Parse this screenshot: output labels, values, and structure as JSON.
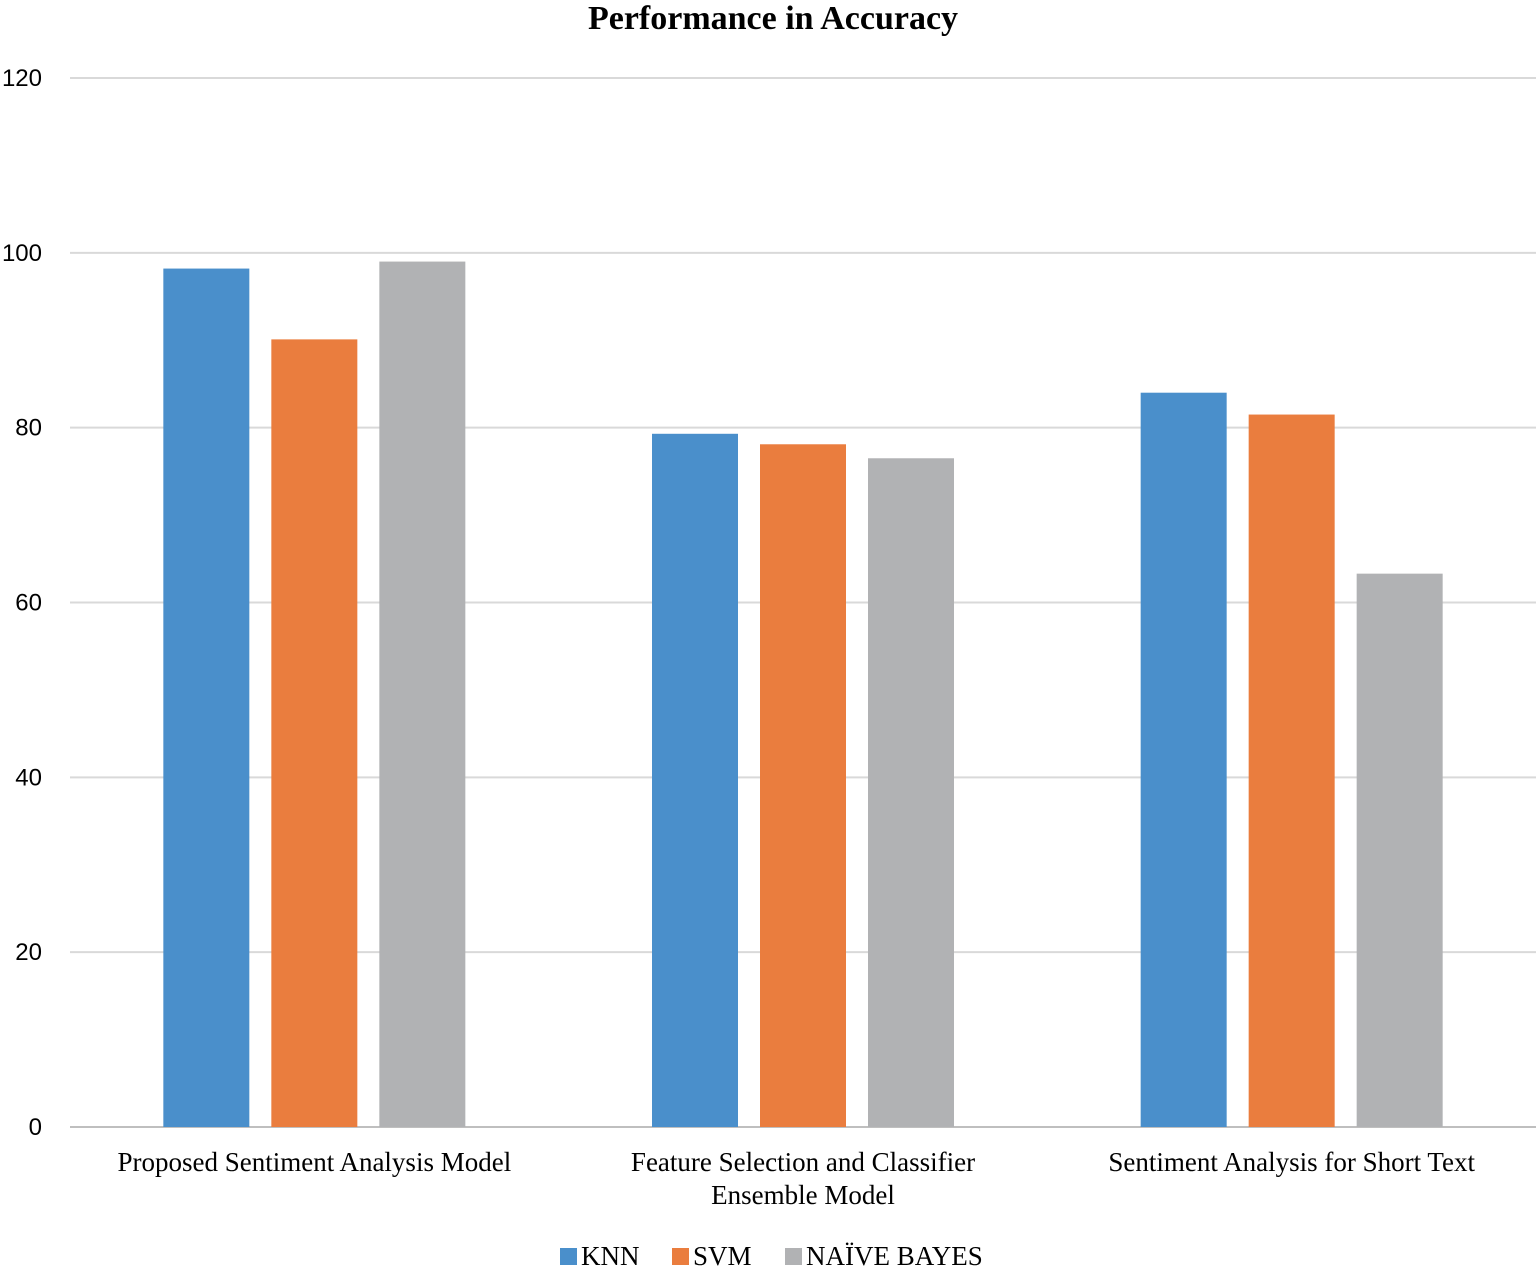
{
  "chart_data": {
    "type": "bar",
    "title": "Performance in Accuracy",
    "xlabel": "",
    "ylabel": "",
    "ylim": [
      0,
      120
    ],
    "yticks": [
      "0",
      "20",
      "40",
      "60",
      "80",
      "100",
      "120"
    ],
    "categories": [
      [
        "Proposed Sentiment Analysis Model"
      ],
      [
        "Feature Selection and Classifier",
        "Ensemble Model"
      ],
      [
        "Sentiment Analysis for Short Text"
      ]
    ],
    "series": [
      {
        "name": "KNN",
        "color": "#4a8fcb",
        "values": [
          98.2,
          79.3,
          84.0
        ]
      },
      {
        "name": "SVM",
        "color": "#ea7d3e",
        "values": [
          90.1,
          78.1,
          81.5
        ]
      },
      {
        "name": "NAÏVE BAYES",
        "color": "#b1b2b4",
        "values": [
          99.0,
          76.5,
          63.3
        ]
      }
    ],
    "grid": true,
    "legend_position": "bottom"
  }
}
